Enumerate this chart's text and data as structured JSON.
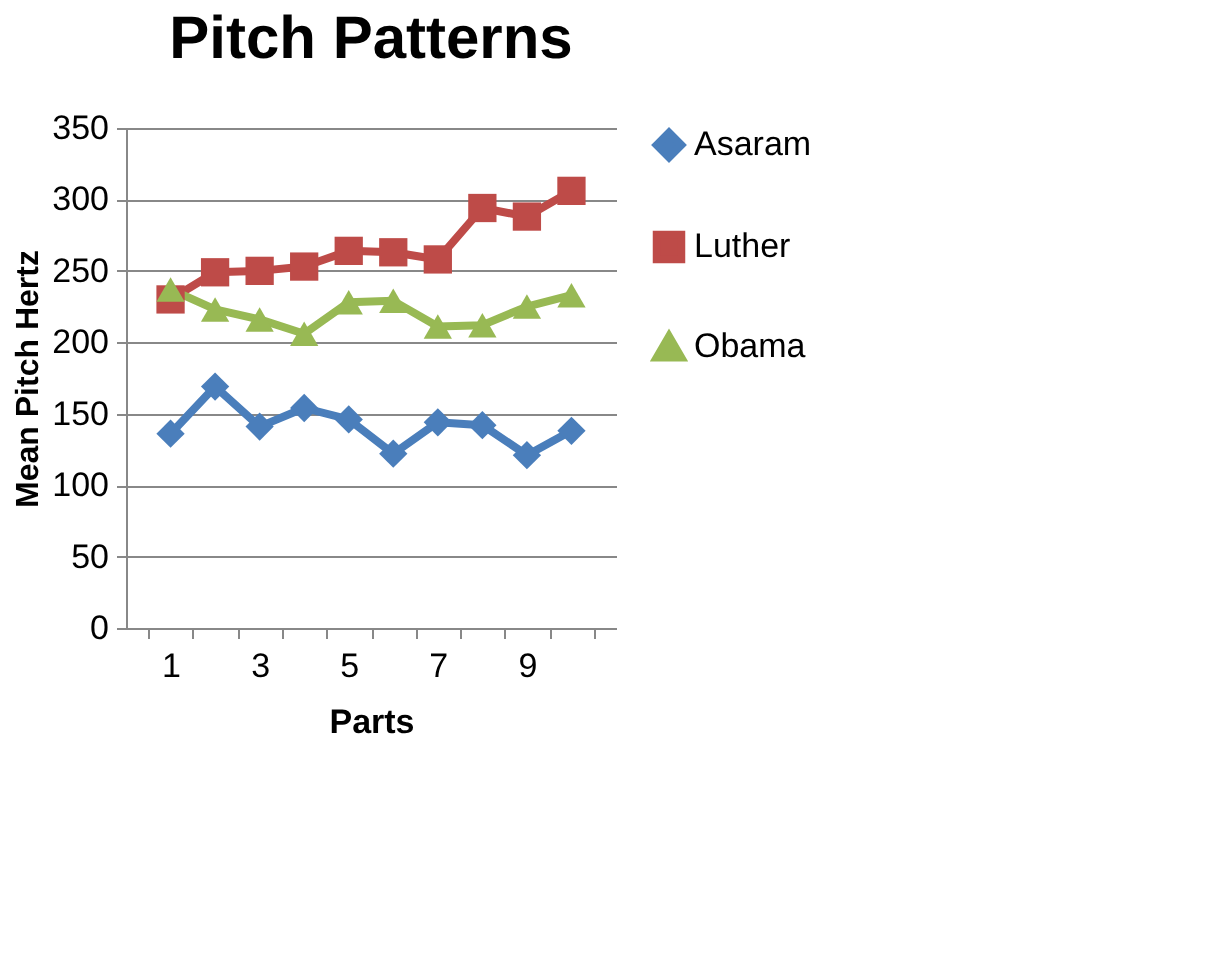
{
  "chart_data": {
    "type": "line",
    "title": "Pitch Patterns",
    "xlabel": "Parts",
    "ylabel": "Mean Pitch Hertz",
    "categories": [
      "1",
      null,
      "3",
      null,
      "5",
      null,
      "7",
      null,
      "9",
      null
    ],
    "series": [
      {
        "name": "Asaram",
        "color": "#4a7ebb",
        "marker": "diamond",
        "values": [
          136,
          169,
          141,
          154,
          146,
          122,
          144,
          142,
          121,
          138
        ]
      },
      {
        "name": "Luther",
        "color": "#be4b48",
        "marker": "square",
        "values": [
          230,
          249,
          250,
          253,
          264,
          263,
          258,
          294,
          288,
          306
        ]
      },
      {
        "name": "Obama",
        "color": "#98b954",
        "marker": "triangle",
        "values": [
          237,
          223,
          216,
          206,
          228,
          229,
          211,
          212,
          225,
          233
        ]
      }
    ],
    "ylim": [
      0,
      350
    ],
    "yticks": [
      0,
      50,
      100,
      150,
      200,
      250,
      300,
      350
    ],
    "grid": "y",
    "legend": "right"
  }
}
